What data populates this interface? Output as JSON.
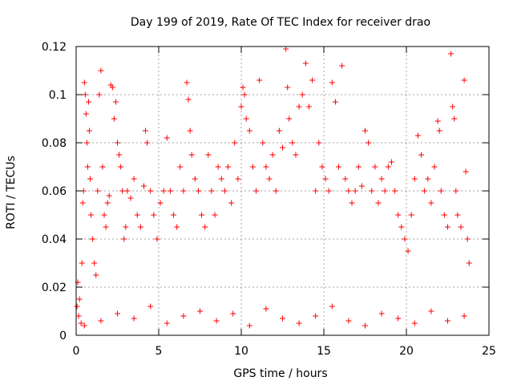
{
  "chart_data": {
    "type": "scatter",
    "title": "Day 199 of 2019, Rate Of TEC Index for receiver drao",
    "xlabel": "GPS time / hours",
    "ylabel": "ROTI / TECUs",
    "xlim": [
      0,
      25
    ],
    "ylim": [
      0,
      0.12
    ],
    "xticks": [
      0,
      5,
      10,
      15,
      20,
      25
    ],
    "yticks": [
      0,
      0.02,
      0.04,
      0.06,
      0.08,
      0.1,
      0.12
    ],
    "xtick_labels": [
      "0",
      "5",
      "10",
      "15",
      "20",
      "25"
    ],
    "ytick_labels": [
      "0",
      "0.02",
      "0.04",
      "0.06",
      "0.08",
      "0.1",
      "0.12"
    ],
    "grid": true,
    "marker": "plus",
    "color": "#ff0000",
    "series": [
      {
        "points": [
          [
            0.05,
            0.012
          ],
          [
            0.1,
            0.022
          ],
          [
            0.15,
            0.008
          ],
          [
            0.2,
            0.015
          ],
          [
            0.3,
            0.005
          ],
          [
            0.35,
            0.03
          ],
          [
            0.4,
            0.055
          ],
          [
            0.45,
            0.06
          ],
          [
            0.5,
            0.105
          ],
          [
            0.55,
            0.1
          ],
          [
            0.6,
            0.092
          ],
          [
            0.65,
            0.08
          ],
          [
            0.7,
            0.07
          ],
          [
            0.75,
            0.097
          ],
          [
            0.8,
            0.085
          ],
          [
            0.85,
            0.065
          ],
          [
            0.9,
            0.05
          ],
          [
            1.0,
            0.04
          ],
          [
            1.1,
            0.03
          ],
          [
            1.2,
            0.025
          ],
          [
            1.3,
            0.06
          ],
          [
            1.4,
            0.1
          ],
          [
            1.5,
            0.11
          ],
          [
            1.6,
            0.07
          ],
          [
            1.7,
            0.05
          ],
          [
            1.8,
            0.045
          ],
          [
            1.9,
            0.055
          ],
          [
            2.0,
            0.058
          ],
          [
            2.1,
            0.104
          ],
          [
            2.2,
            0.103
          ],
          [
            2.3,
            0.09
          ],
          [
            2.4,
            0.097
          ],
          [
            2.5,
            0.08
          ],
          [
            2.6,
            0.075
          ],
          [
            2.7,
            0.07
          ],
          [
            2.8,
            0.06
          ],
          [
            2.9,
            0.04
          ],
          [
            3.0,
            0.045
          ],
          [
            3.1,
            0.06
          ],
          [
            3.3,
            0.057
          ],
          [
            3.5,
            0.065
          ],
          [
            3.7,
            0.05
          ],
          [
            3.9,
            0.045
          ],
          [
            4.1,
            0.062
          ],
          [
            4.2,
            0.085
          ],
          [
            4.3,
            0.08
          ],
          [
            4.5,
            0.06
          ],
          [
            4.7,
            0.05
          ],
          [
            4.9,
            0.04
          ],
          [
            5.1,
            0.055
          ],
          [
            5.3,
            0.06
          ],
          [
            5.5,
            0.082
          ],
          [
            5.7,
            0.06
          ],
          [
            5.9,
            0.05
          ],
          [
            6.1,
            0.045
          ],
          [
            6.3,
            0.07
          ],
          [
            6.5,
            0.06
          ],
          [
            6.7,
            0.105
          ],
          [
            6.8,
            0.098
          ],
          [
            6.9,
            0.085
          ],
          [
            7.0,
            0.075
          ],
          [
            7.2,
            0.065
          ],
          [
            7.4,
            0.06
          ],
          [
            7.6,
            0.05
          ],
          [
            7.8,
            0.045
          ],
          [
            8.0,
            0.075
          ],
          [
            8.2,
            0.06
          ],
          [
            8.4,
            0.05
          ],
          [
            8.6,
            0.07
          ],
          [
            8.8,
            0.065
          ],
          [
            9.0,
            0.06
          ],
          [
            9.2,
            0.07
          ],
          [
            9.4,
            0.055
          ],
          [
            9.6,
            0.08
          ],
          [
            9.8,
            0.065
          ],
          [
            10.0,
            0.095
          ],
          [
            10.1,
            0.103
          ],
          [
            10.2,
            0.1
          ],
          [
            10.3,
            0.09
          ],
          [
            10.5,
            0.085
          ],
          [
            10.7,
            0.07
          ],
          [
            10.9,
            0.06
          ],
          [
            11.1,
            0.106
          ],
          [
            11.3,
            0.08
          ],
          [
            11.5,
            0.07
          ],
          [
            11.7,
            0.065
          ],
          [
            11.9,
            0.075
          ],
          [
            12.1,
            0.06
          ],
          [
            12.3,
            0.085
          ],
          [
            12.5,
            0.078
          ],
          [
            12.7,
            0.119
          ],
          [
            12.8,
            0.103
          ],
          [
            12.9,
            0.09
          ],
          [
            13.1,
            0.08
          ],
          [
            13.3,
            0.075
          ],
          [
            13.5,
            0.095
          ],
          [
            13.7,
            0.1
          ],
          [
            13.9,
            0.113
          ],
          [
            14.1,
            0.095
          ],
          [
            14.3,
            0.106
          ],
          [
            14.5,
            0.06
          ],
          [
            14.7,
            0.08
          ],
          [
            14.9,
            0.07
          ],
          [
            15.1,
            0.065
          ],
          [
            15.3,
            0.06
          ],
          [
            15.5,
            0.105
          ],
          [
            15.7,
            0.097
          ],
          [
            15.9,
            0.07
          ],
          [
            16.1,
            0.112
          ],
          [
            16.3,
            0.065
          ],
          [
            16.5,
            0.06
          ],
          [
            16.7,
            0.055
          ],
          [
            16.9,
            0.06
          ],
          [
            17.1,
            0.07
          ],
          [
            17.3,
            0.062
          ],
          [
            17.5,
            0.085
          ],
          [
            17.7,
            0.08
          ],
          [
            17.9,
            0.06
          ],
          [
            18.1,
            0.07
          ],
          [
            18.3,
            0.055
          ],
          [
            18.5,
            0.065
          ],
          [
            18.7,
            0.06
          ],
          [
            18.9,
            0.07
          ],
          [
            19.1,
            0.072
          ],
          [
            19.3,
            0.06
          ],
          [
            19.5,
            0.05
          ],
          [
            19.7,
            0.045
          ],
          [
            19.9,
            0.04
          ],
          [
            20.1,
            0.035
          ],
          [
            20.3,
            0.05
          ],
          [
            20.5,
            0.065
          ],
          [
            20.7,
            0.083
          ],
          [
            20.9,
            0.075
          ],
          [
            21.1,
            0.06
          ],
          [
            21.3,
            0.065
          ],
          [
            21.5,
            0.055
          ],
          [
            21.7,
            0.07
          ],
          [
            21.9,
            0.089
          ],
          [
            22.0,
            0.085
          ],
          [
            22.1,
            0.06
          ],
          [
            22.3,
            0.05
          ],
          [
            22.5,
            0.045
          ],
          [
            22.7,
            0.117
          ],
          [
            22.8,
            0.095
          ],
          [
            22.9,
            0.09
          ],
          [
            23.0,
            0.06
          ],
          [
            23.1,
            0.05
          ],
          [
            23.3,
            0.045
          ],
          [
            23.5,
            0.106
          ],
          [
            23.6,
            0.068
          ],
          [
            23.7,
            0.04
          ],
          [
            23.8,
            0.03
          ],
          [
            0.5,
            0.004
          ],
          [
            1.5,
            0.006
          ],
          [
            2.5,
            0.009
          ],
          [
            3.5,
            0.007
          ],
          [
            4.5,
            0.012
          ],
          [
            5.5,
            0.005
          ],
          [
            6.5,
            0.008
          ],
          [
            7.5,
            0.01
          ],
          [
            8.5,
            0.006
          ],
          [
            9.5,
            0.009
          ],
          [
            10.5,
            0.004
          ],
          [
            11.5,
            0.011
          ],
          [
            12.5,
            0.007
          ],
          [
            13.5,
            0.005
          ],
          [
            14.5,
            0.008
          ],
          [
            15.5,
            0.012
          ],
          [
            16.5,
            0.006
          ],
          [
            17.5,
            0.004
          ],
          [
            18.5,
            0.009
          ],
          [
            19.5,
            0.007
          ],
          [
            20.5,
            0.005
          ],
          [
            21.5,
            0.01
          ],
          [
            22.5,
            0.006
          ],
          [
            23.5,
            0.008
          ]
        ]
      }
    ]
  }
}
